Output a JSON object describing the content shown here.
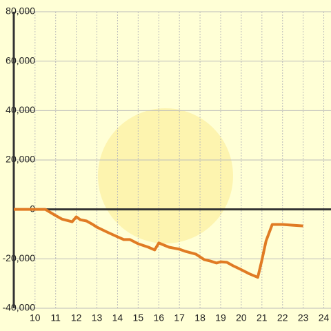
{
  "chart_data": {
    "type": "line",
    "x": [
      8.97,
      10.5,
      11.0,
      11.3,
      11.8,
      12.0,
      12.2,
      12.5,
      12.8,
      13.0,
      13.5,
      14.0,
      14.3,
      14.6,
      15.0,
      15.5,
      15.8,
      16.0,
      16.5,
      17.0,
      17.3,
      17.8,
      18.2,
      18.5,
      18.8,
      19.0,
      19.3,
      19.6,
      20.0,
      20.4,
      20.8,
      21.0,
      21.2,
      21.5,
      22.0,
      22.5,
      23.0
    ],
    "series": [
      {
        "color": "#e07b24",
        "values": [
          0,
          0,
          -2500,
          -3900,
          -5000,
          -3000,
          -4200,
          -4700,
          -6100,
          -7200,
          -9200,
          -11100,
          -12200,
          -12200,
          -13900,
          -15300,
          -16400,
          -13600,
          -15300,
          -16100,
          -17000,
          -18100,
          -20300,
          -20900,
          -21700,
          -21200,
          -21400,
          -22800,
          -24400,
          -26100,
          -27500,
          -20500,
          -12800,
          -6100,
          -6100,
          -6400,
          -6700
        ]
      }
    ],
    "xlim": [
      8.97,
      24.35
    ],
    "ylim": [
      -40000,
      80000
    ],
    "xticks": [
      10,
      11,
      12,
      13,
      14,
      15,
      16,
      17,
      18,
      19,
      20,
      21,
      22,
      23,
      24
    ],
    "yticks": [
      {
        "value": -40000,
        "label": "-40,000"
      },
      {
        "value": -20000,
        "label": "-20,000"
      },
      0,
      {
        "value": 20000,
        "label": "20,000"
      },
      {
        "value": 40000,
        "label": "40,000"
      },
      {
        "value": 60000,
        "label": "60,000"
      },
      {
        "value": 80000,
        "label": "80,000"
      }
    ],
    "grid": true
  }
}
